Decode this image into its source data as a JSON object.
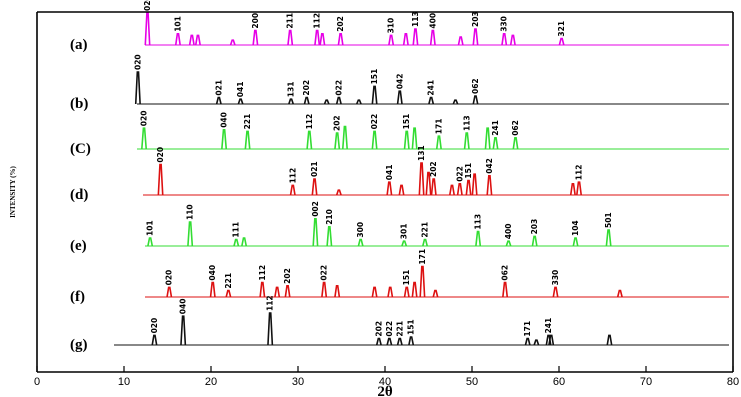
{
  "chart_data": {
    "type": "line",
    "title": "",
    "xlabel": "2θ",
    "ylabel": "INTENSITY (%)",
    "xlim": [
      0,
      80
    ],
    "x_ticks": [
      0,
      10,
      20,
      30,
      40,
      50,
      60,
      70,
      80
    ],
    "grid": false,
    "series": [
      {
        "name": "(a)",
        "color": "#e600e6",
        "peaks": [
          {
            "x": 12.7,
            "h": 1.0,
            "label": "020"
          },
          {
            "x": 16.2,
            "h": 0.35,
            "label": "101"
          },
          {
            "x": 17.8,
            "h": 0.3,
            "label": ""
          },
          {
            "x": 18.5,
            "h": 0.3,
            "label": ""
          },
          {
            "x": 22.5,
            "h": 0.15,
            "label": ""
          },
          {
            "x": 25.1,
            "h": 0.45,
            "label": "200"
          },
          {
            "x": 29.1,
            "h": 0.45,
            "label": "211"
          },
          {
            "x": 32.2,
            "h": 0.45,
            "label": "112"
          },
          {
            "x": 32.8,
            "h": 0.35,
            "label": ""
          },
          {
            "x": 34.9,
            "h": 0.35,
            "label": "202"
          },
          {
            "x": 40.7,
            "h": 0.3,
            "label": "310"
          },
          {
            "x": 42.4,
            "h": 0.35,
            "label": ""
          },
          {
            "x": 43.5,
            "h": 0.5,
            "label": "113"
          },
          {
            "x": 45.5,
            "h": 0.45,
            "label": "400"
          },
          {
            "x": 48.7,
            "h": 0.25,
            "label": ""
          },
          {
            "x": 50.4,
            "h": 0.5,
            "label": "203"
          },
          {
            "x": 53.7,
            "h": 0.35,
            "label": "330"
          },
          {
            "x": 54.7,
            "h": 0.3,
            "label": ""
          },
          {
            "x": 60.3,
            "h": 0.2,
            "label": "321"
          }
        ]
      },
      {
        "name": "(b)",
        "color": "#111111",
        "peaks": [
          {
            "x": 11.6,
            "h": 1.0,
            "label": "020"
          },
          {
            "x": 20.9,
            "h": 0.2,
            "label": "021"
          },
          {
            "x": 23.4,
            "h": 0.15,
            "label": "041"
          },
          {
            "x": 29.2,
            "h": 0.15,
            "label": "131"
          },
          {
            "x": 31.0,
            "h": 0.2,
            "label": "202"
          },
          {
            "x": 33.3,
            "h": 0.12,
            "label": ""
          },
          {
            "x": 34.7,
            "h": 0.2,
            "label": "022"
          },
          {
            "x": 37.0,
            "h": 0.12,
            "label": ""
          },
          {
            "x": 38.8,
            "h": 0.55,
            "label": "151"
          },
          {
            "x": 41.7,
            "h": 0.4,
            "label": "042"
          },
          {
            "x": 45.3,
            "h": 0.2,
            "label": "241"
          },
          {
            "x": 48.1,
            "h": 0.12,
            "label": ""
          },
          {
            "x": 50.4,
            "h": 0.25,
            "label": "062"
          }
        ]
      },
      {
        "name": "(C)",
        "color": "#33dd33",
        "peaks": [
          {
            "x": 12.3,
            "h": 0.65,
            "label": "020"
          },
          {
            "x": 21.5,
            "h": 0.6,
            "label": "040"
          },
          {
            "x": 24.2,
            "h": 0.55,
            "label": "221"
          },
          {
            "x": 31.3,
            "h": 0.55,
            "label": "112"
          },
          {
            "x": 34.5,
            "h": 0.5,
            "label": "202"
          },
          {
            "x": 35.4,
            "h": 0.7,
            "label": ""
          },
          {
            "x": 38.8,
            "h": 0.55,
            "label": "022"
          },
          {
            "x": 42.5,
            "h": 0.55,
            "label": "151"
          },
          {
            "x": 43.4,
            "h": 0.65,
            "label": ""
          },
          {
            "x": 46.2,
            "h": 0.4,
            "label": "171"
          },
          {
            "x": 49.4,
            "h": 0.5,
            "label": "113"
          },
          {
            "x": 51.8,
            "h": 0.65,
            "label": ""
          },
          {
            "x": 52.7,
            "h": 0.35,
            "label": "241"
          },
          {
            "x": 55.0,
            "h": 0.35,
            "label": "062"
          }
        ]
      },
      {
        "name": "(d)",
        "color": "#dd1111",
        "peaks": [
          {
            "x": 14.2,
            "h": 0.95,
            "label": "020"
          },
          {
            "x": 29.4,
            "h": 0.3,
            "label": "112"
          },
          {
            "x": 31.9,
            "h": 0.5,
            "label": "021"
          },
          {
            "x": 34.7,
            "h": 0.15,
            "label": ""
          },
          {
            "x": 40.5,
            "h": 0.4,
            "label": "041"
          },
          {
            "x": 41.9,
            "h": 0.3,
            "label": ""
          },
          {
            "x": 44.2,
            "h": 1.0,
            "label": "131"
          },
          {
            "x": 45.0,
            "h": 0.7,
            "label": ""
          },
          {
            "x": 45.6,
            "h": 0.5,
            "label": "202"
          },
          {
            "x": 47.7,
            "h": 0.3,
            "label": ""
          },
          {
            "x": 48.6,
            "h": 0.35,
            "label": "022"
          },
          {
            "x": 49.6,
            "h": 0.45,
            "label": "151"
          },
          {
            "x": 50.3,
            "h": 0.65,
            "label": ""
          },
          {
            "x": 52.0,
            "h": 0.6,
            "label": "042"
          },
          {
            "x": 61.6,
            "h": 0.35,
            "label": ""
          },
          {
            "x": 62.3,
            "h": 0.4,
            "label": "112"
          }
        ]
      },
      {
        "name": "(e)",
        "color": "#33dd33",
        "peaks": [
          {
            "x": 13.0,
            "h": 0.25,
            "label": "101"
          },
          {
            "x": 17.6,
            "h": 0.75,
            "label": "110"
          },
          {
            "x": 22.9,
            "h": 0.2,
            "label": "111"
          },
          {
            "x": 23.8,
            "h": 0.25,
            "label": ""
          },
          {
            "x": 32.0,
            "h": 0.85,
            "label": "002"
          },
          {
            "x": 33.6,
            "h": 0.6,
            "label": "210"
          },
          {
            "x": 37.2,
            "h": 0.2,
            "label": "300"
          },
          {
            "x": 42.2,
            "h": 0.15,
            "label": "301"
          },
          {
            "x": 44.6,
            "h": 0.2,
            "label": "221"
          },
          {
            "x": 50.7,
            "h": 0.45,
            "label": "113"
          },
          {
            "x": 54.2,
            "h": 0.15,
            "label": "400"
          },
          {
            "x": 57.2,
            "h": 0.3,
            "label": "203"
          },
          {
            "x": 61.9,
            "h": 0.25,
            "label": "104"
          },
          {
            "x": 65.7,
            "h": 0.5,
            "label": "501"
          }
        ]
      },
      {
        "name": "(f)",
        "color": "#dd1111",
        "peaks": [
          {
            "x": 15.2,
            "h": 0.3,
            "label": "020"
          },
          {
            "x": 20.2,
            "h": 0.45,
            "label": "040"
          },
          {
            "x": 22.0,
            "h": 0.2,
            "label": "221"
          },
          {
            "x": 25.9,
            "h": 0.45,
            "label": "112"
          },
          {
            "x": 27.6,
            "h": 0.3,
            "label": ""
          },
          {
            "x": 28.8,
            "h": 0.35,
            "label": "202"
          },
          {
            "x": 33.0,
            "h": 0.45,
            "label": "022"
          },
          {
            "x": 34.5,
            "h": 0.35,
            "label": ""
          },
          {
            "x": 38.8,
            "h": 0.3,
            "label": ""
          },
          {
            "x": 40.6,
            "h": 0.3,
            "label": ""
          },
          {
            "x": 42.5,
            "h": 0.3,
            "label": "151"
          },
          {
            "x": 43.4,
            "h": 0.45,
            "label": ""
          },
          {
            "x": 44.3,
            "h": 0.95,
            "label": "171"
          },
          {
            "x": 45.8,
            "h": 0.2,
            "label": ""
          },
          {
            "x": 53.8,
            "h": 0.45,
            "label": "062"
          },
          {
            "x": 59.6,
            "h": 0.3,
            "label": "330"
          },
          {
            "x": 67.0,
            "h": 0.2,
            "label": ""
          }
        ]
      },
      {
        "name": "(g)",
        "color": "#111111",
        "peaks": [
          {
            "x": 13.5,
            "h": 0.3,
            "label": "020"
          },
          {
            "x": 16.8,
            "h": 0.9,
            "label": "040"
          },
          {
            "x": 26.8,
            "h": 1.0,
            "label": "112"
          },
          {
            "x": 39.3,
            "h": 0.2,
            "label": "202"
          },
          {
            "x": 40.5,
            "h": 0.2,
            "label": "022"
          },
          {
            "x": 41.7,
            "h": 0.2,
            "label": "221"
          },
          {
            "x": 43.0,
            "h": 0.25,
            "label": "151"
          },
          {
            "x": 56.4,
            "h": 0.2,
            "label": "171"
          },
          {
            "x": 57.4,
            "h": 0.15,
            "label": ""
          },
          {
            "x": 58.8,
            "h": 0.3,
            "label": "241"
          },
          {
            "x": 59.1,
            "h": 0.3,
            "label": ""
          },
          {
            "x": 65.8,
            "h": 0.3,
            "label": ""
          }
        ]
      }
    ]
  }
}
